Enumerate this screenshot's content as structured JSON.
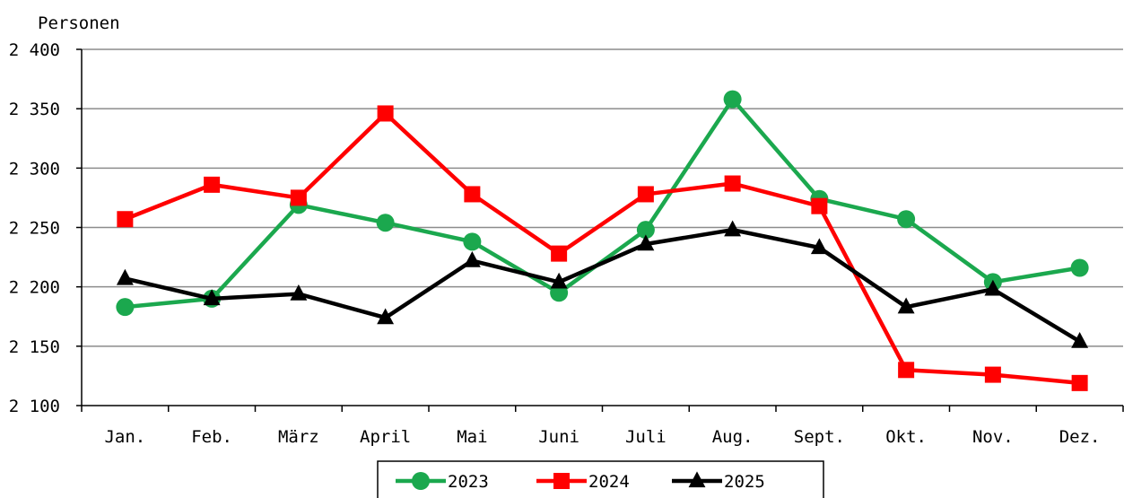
{
  "chart_data": {
    "type": "line",
    "ylabel": "Personen",
    "categories": [
      "Jan.",
      "Feb.",
      "März",
      "April",
      "Mai",
      "Juni",
      "Juli",
      "Aug.",
      "Sept.",
      "Okt.",
      "Nov.",
      "Dez."
    ],
    "ylim": [
      2100,
      2400
    ],
    "yticks": [
      2100,
      2150,
      2200,
      2250,
      2300,
      2350,
      2400
    ],
    "ytick_labels": [
      "2 100",
      "2 150",
      "2 200",
      "2 250",
      "2 300",
      "2 350",
      "2 400"
    ],
    "grid": true,
    "legend_position": "bottom",
    "series": [
      {
        "name": "2023",
        "color": "#1ba84e",
        "marker": "circle",
        "values": [
          2183,
          2190,
          2269,
          2254,
          2238,
          2195,
          2248,
          2358,
          2274,
          2257,
          2204,
          2216
        ]
      },
      {
        "name": "2024",
        "color": "#ff0000",
        "marker": "square",
        "values": [
          2257,
          2286,
          2275,
          2346,
          2278,
          2228,
          2278,
          2287,
          2268,
          2130,
          2126,
          2119
        ]
      },
      {
        "name": "2025",
        "color": "#000000",
        "marker": "triangle",
        "values": [
          2207,
          2190,
          2194,
          2174,
          2222,
          2204,
          2236,
          2248,
          2233,
          2183,
          2198,
          2154
        ]
      }
    ]
  }
}
